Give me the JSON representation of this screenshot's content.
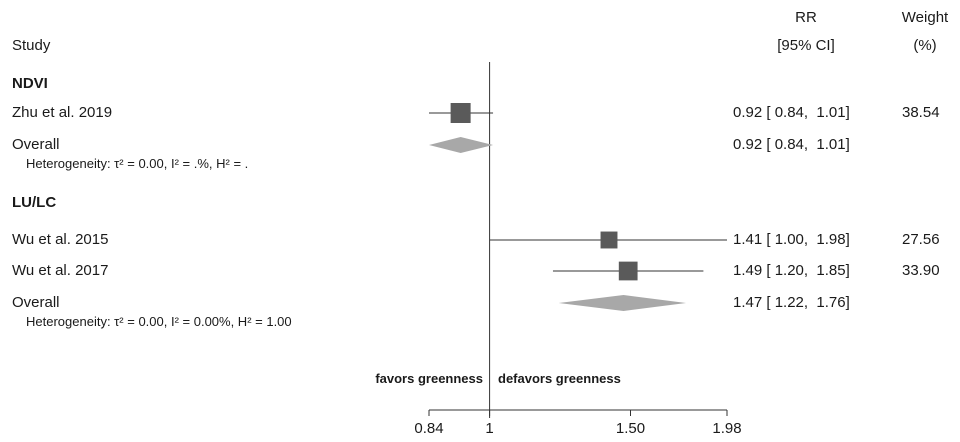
{
  "header": {
    "study_label": "Study",
    "rr_label": "RR",
    "ci_label": "[95% CI]",
    "weight_label": "Weight",
    "weight_unit": "(%)"
  },
  "groups": [
    {
      "name": "NDVI",
      "studies": [
        {
          "label": "Zhu et al. 2019",
          "est_text": "0.92 [ 0.84,  1.01]",
          "weight_text": "38.54"
        }
      ],
      "overall": {
        "label": "Overall",
        "est_text": "0.92 [ 0.84,  1.01]",
        "heterogeneity_text": "Heterogeneity: τ² = 0.00, I² = .%, H² = ."
      }
    },
    {
      "name": "LU/LC",
      "studies": [
        {
          "label": "Wu et al. 2015",
          "est_text": "1.41 [ 1.00,  1.98]",
          "weight_text": "27.56"
        },
        {
          "label": "Wu et al. 2017",
          "est_text": "1.49 [ 1.20,  1.85]",
          "weight_text": "33.90"
        }
      ],
      "overall": {
        "label": "Overall",
        "est_text": "1.47 [ 1.22,  1.76]",
        "heterogeneity_text": "Heterogeneity: τ² = 0.00, I² = 0.00%, H² = 1.00"
      }
    }
  ],
  "favor_left": "favors greenness",
  "favor_right": "defavors greenness",
  "colors": {
    "marker": "#5a5a5a",
    "diamond": "#a8a8a8",
    "line": "#333333"
  },
  "chart_data": {
    "type": "forest",
    "x_axis": {
      "scale": "log",
      "ticks": [
        0.84,
        1,
        1.5,
        1.98
      ],
      "tick_labels": [
        "0.84",
        "1",
        "1.50",
        "1.98"
      ],
      "range": [
        0.84,
        1.98
      ],
      "reference": 1
    },
    "studies": [
      {
        "group": "NDVI",
        "name": "Zhu et al. 2019",
        "rr": 0.92,
        "lower": 0.84,
        "upper": 1.01,
        "weight": 38.54
      },
      {
        "group": "LU/LC",
        "name": "Wu et al. 2015",
        "rr": 1.41,
        "lower": 1.0,
        "upper": 1.98,
        "weight": 27.56
      },
      {
        "group": "LU/LC",
        "name": "Wu et al. 2017",
        "rr": 1.49,
        "lower": 1.2,
        "upper": 1.85,
        "weight": 33.9
      }
    ],
    "overall": [
      {
        "group": "NDVI",
        "rr": 0.92,
        "lower": 0.84,
        "upper": 1.01
      },
      {
        "group": "LU/LC",
        "rr": 1.47,
        "lower": 1.22,
        "upper": 1.76
      }
    ]
  }
}
